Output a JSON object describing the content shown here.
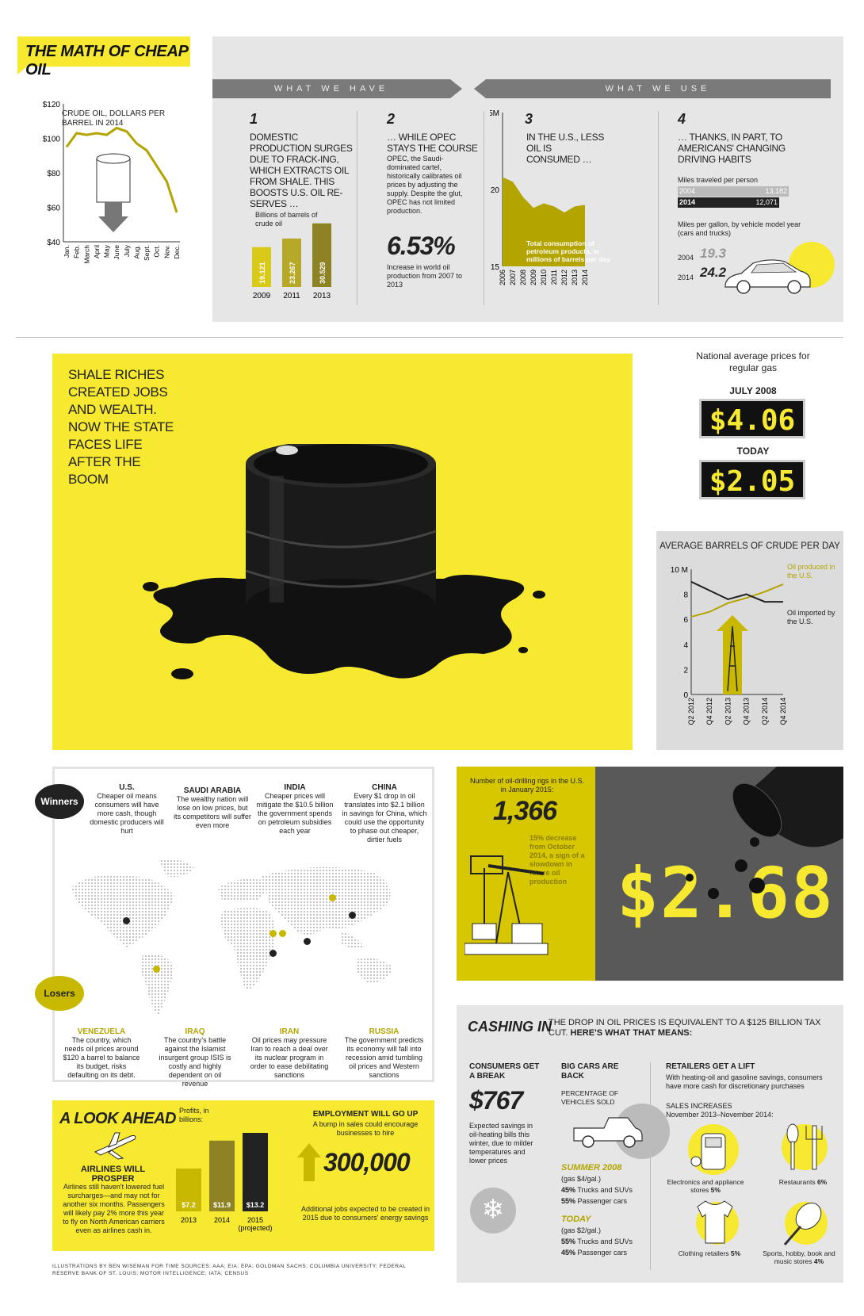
{
  "title": "THE MATH OF CHEAP OIL",
  "crude": {
    "label": "CRUDE OIL, DOLLARS PER BARREL IN 2014",
    "yticks": [
      "$120",
      "$100",
      "$80",
      "$60",
      "$40"
    ],
    "months": [
      "Jan.",
      "Feb.",
      "March",
      "April",
      "May",
      "June",
      "July",
      "Aug.",
      "Sept.",
      "Oct.",
      "Nov.",
      "Dec."
    ],
    "values": [
      95,
      103,
      102,
      103,
      102,
      106,
      104,
      97,
      93,
      84,
      75,
      57
    ]
  },
  "banner": {
    "have": "WHAT WE HAVE",
    "use": "WHAT WE USE"
  },
  "p1": {
    "num": "1",
    "head": "DOMESTIC PRODUCTION SURGES DUE TO FRACK-ING, WHICH EXTRACTS OIL FROM SHALE. THIS BOOSTS U.S. OIL RE-SERVES …",
    "unit": "Billions of barrels of crude oil",
    "bars": [
      {
        "year": "2009",
        "value": "19.121",
        "v": 19.121
      },
      {
        "year": "2011",
        "value": "23.267",
        "v": 23.267
      },
      {
        "year": "2013",
        "value": "30.529",
        "v": 30.529
      }
    ]
  },
  "p2": {
    "num": "2",
    "head": "… WHILE OPEC STAYS THE COURSE",
    "body": "OPEC, the Saudi-dominated cartel, historically calibrates oil prices by adjusting the supply. Despite the glut, OPEC has not limited production.",
    "big": "6.53%",
    "note": "Increase in world oil production from 2007 to 2013"
  },
  "p3": {
    "num": "3",
    "head": "IN THE U.S., LESS OIL IS CONSUMED …",
    "yticks": [
      "25M",
      "20",
      "15"
    ],
    "years": [
      "2006",
      "2007",
      "2008",
      "2009",
      "2010",
      "2011",
      "2012",
      "2013",
      "2014"
    ],
    "values": [
      20.8,
      20.5,
      19.5,
      18.8,
      19.1,
      18.9,
      18.5,
      18.9,
      19.0
    ],
    "label": "Total consumption of petroleum products, in millions of barrels per day"
  },
  "p4": {
    "num": "4",
    "head": "… THANKS, IN PART, TO AMERICANS' CHANGING DRIVING HABITS",
    "miles_label": "Miles traveled per person",
    "miles": [
      {
        "year": "2004",
        "value": "13,182"
      },
      {
        "year": "2014",
        "value": "12,071"
      }
    ],
    "mpg_label": "Miles per gallon, by vehicle model year (cars and trucks)",
    "mpg": [
      {
        "year": "2004",
        "value": "19.3"
      },
      {
        "year": "2014",
        "value": "24.2"
      }
    ]
  },
  "shale": "SHALE RICHES CREATED JOBS AND WEALTH. NOW THE STATE FACES LIFE AFTER THE BOOM",
  "gas": {
    "label": "National average prices for regular gas",
    "d1": "JULY 2008",
    "p1": "$4.06",
    "d2": "TODAY",
    "p2": "$2.05"
  },
  "barrels": {
    "title": "AVERAGE BARRELS OF CRUDE PER DAY",
    "yticks": [
      "10 M",
      "8",
      "6",
      "4",
      "2",
      "0"
    ],
    "quarters": [
      "Q2 2012",
      "Q4 2012",
      "Q2 2013",
      "Q4 2013",
      "Q2 2014",
      "Q4 2014"
    ],
    "produced_label": "Oil produced in the U.S.",
    "imported_label": "Oil imported by the U.S.",
    "produced": [
      6.2,
      6.6,
      7.3,
      7.7,
      8.2,
      8.8
    ],
    "imported": [
      9.0,
      8.3,
      7.6,
      8.0,
      7.4,
      7.4
    ]
  },
  "winners": {
    "label": "Winners",
    "items": [
      {
        "name": "U.S.",
        "text": "Cheaper oil means consumers will have more cash, though domestic producers will hurt"
      },
      {
        "name": "SAUDI ARABIA",
        "text": "The wealthy nation will lose on low prices, but its competitors will suffer even more"
      },
      {
        "name": "INDIA",
        "text": "Cheaper prices will mitigate the $10.5 billion the government spends on petroleum subsidies each year"
      },
      {
        "name": "CHINA",
        "text": "Every $1 drop in oil translates into $2.1 billion in savings for China, which could use the opportunity to phase out cheaper, dirtier fuels"
      }
    ]
  },
  "losers": {
    "label": "Losers",
    "items": [
      {
        "name": "VENEZUELA",
        "text": "The country, which needs oil prices around $120 a barrel to balance its budget, risks defaulting on its debt."
      },
      {
        "name": "IRAQ",
        "text": "The country's battle against the Islamist insurgent group ISIS is costly and highly dependent on oil revenue"
      },
      {
        "name": "IRAN",
        "text": "Oil prices may pressure Iran to reach a deal over its nuclear program in order to ease debilitating sanctions"
      },
      {
        "name": "RUSSIA",
        "text": "The government predicts its economy will fall into recession amid tumbling oil prices and Western sanctions"
      }
    ]
  },
  "rigs": {
    "label": "Number of oil-drilling rigs in the U.S. in January 2015:",
    "value": "1,366",
    "note": "15% decrease from October 2014, a sign of a slowdown in future oil production",
    "price": "$2.68"
  },
  "ahead": {
    "title": "A LOOK AHEAD",
    "airline_head": "AIRLINES WILL PROSPER",
    "airline_text": "Airlines still haven't lowered fuel surcharges—and may not for another six months. Passengers will likely pay 2% more this year to fly on North American carriers even as airlines cash in.",
    "profits_label": "Profits, in billions:",
    "bars": [
      {
        "year": "2013",
        "value": "$7.2",
        "v": 7.2
      },
      {
        "year": "2014",
        "value": "$11.9",
        "v": 11.9
      },
      {
        "year": "2015 (projected)",
        "value": "$13.2",
        "v": 13.2
      }
    ],
    "emp_head": "EMPLOYMENT WILL GO UP",
    "emp_sub": "A bump in sales could encourage businesses to hire",
    "emp_value": "300,000",
    "emp_note": "Additional jobs expected to be created in 2015 due to consumers' energy savings"
  },
  "credits": "ILLUSTRATIONS BY BEN WISEMAN FOR TIME   SOURCES: AAA; EIA; EPA; GOLDMAN SACHS; COLUMBIA UNIVERSITY; FEDERAL RESERVE BANK OF ST. LOUIS; MOTOR INTELLIGENCE; IATA; CENSUS",
  "cashing": {
    "title": "CASHING IN",
    "sub1": "THE DROP IN OIL PRICES IS EQUIVALENT TO A $125 BILLION TAX CUT.",
    "sub2": "HERE'S WHAT THAT MEANS:",
    "consumers_head": "CONSUMERS GET A BREAK",
    "consumers_value": "$767",
    "consumers_text": "Expected savings in oil-heating bills this winter, due to milder temperatures and lower prices",
    "cars_head": "BIG CARS ARE BACK",
    "cars_label": "PERCENTAGE OF VEHICLES SOLD",
    "s2008": "SUMMER 2008",
    "s2008_gas": "(gas $4/gal.)",
    "s2008_a": "45%",
    "s2008_a_t": "Trucks and SUVs",
    "s2008_b": "55%",
    "s2008_b_t": "Passenger cars",
    "today": "TODAY",
    "today_gas": "(gas $2/gal.)",
    "today_a": "55%",
    "today_a_t": "Trucks and SUVs",
    "today_b": "45%",
    "today_b_t": "Passenger cars",
    "ret_head": "RETAILERS GET A LIFT",
    "ret_text": "With heating-oil and gasoline savings, consumers have more cash for discretionary purchases",
    "ret_sales": "SALES INCREASES",
    "ret_period": "November 2013–November 2014:",
    "items": [
      {
        "label": "Electronics and appliance stores",
        "pct": "5%"
      },
      {
        "label": "Restaurants",
        "pct": "6%"
      },
      {
        "label": "Clothing retailers",
        "pct": "5%"
      },
      {
        "label": "Sports, hobby, book and music stores",
        "pct": "4%"
      }
    ]
  },
  "chart_data": [
    {
      "type": "line",
      "title": "CRUDE OIL, DOLLARS PER BARREL IN 2014",
      "categories": [
        "Jan.",
        "Feb.",
        "March",
        "April",
        "May",
        "June",
        "July",
        "Aug.",
        "Sept.",
        "Oct.",
        "Nov.",
        "Dec."
      ],
      "values": [
        95,
        103,
        102,
        103,
        102,
        106,
        104,
        97,
        93,
        84,
        75,
        57
      ],
      "ylim": [
        40,
        120
      ]
    },
    {
      "type": "bar",
      "title": "Billions of barrels of crude oil",
      "categories": [
        "2009",
        "2011",
        "2013"
      ],
      "values": [
        19.121,
        23.267,
        30.529
      ]
    },
    {
      "type": "area",
      "title": "Total consumption of petroleum products, in millions of barrels per day",
      "categories": [
        "2006",
        "2007",
        "2008",
        "2009",
        "2010",
        "2011",
        "2012",
        "2013",
        "2014"
      ],
      "values": [
        20.8,
        20.5,
        19.5,
        18.8,
        19.1,
        18.9,
        18.5,
        18.9,
        19.0
      ],
      "ylim": [
        15,
        25
      ]
    },
    {
      "type": "line",
      "title": "AVERAGE BARRELS OF CRUDE PER DAY",
      "categories": [
        "Q2 2012",
        "Q4 2012",
        "Q2 2013",
        "Q4 2013",
        "Q2 2014",
        "Q4 2014"
      ],
      "series": [
        {
          "name": "Oil produced in the U.S.",
          "values": [
            6.2,
            6.6,
            7.3,
            7.7,
            8.2,
            8.8
          ]
        },
        {
          "name": "Oil imported by the U.S.",
          "values": [
            9.0,
            8.3,
            7.6,
            8.0,
            7.4,
            7.4
          ]
        }
      ],
      "ylim": [
        0,
        10
      ]
    },
    {
      "type": "bar",
      "title": "Profits, in billions:",
      "categories": [
        "2013",
        "2014",
        "2015 (projected)"
      ],
      "values": [
        7.2,
        11.9,
        13.2
      ]
    }
  ]
}
